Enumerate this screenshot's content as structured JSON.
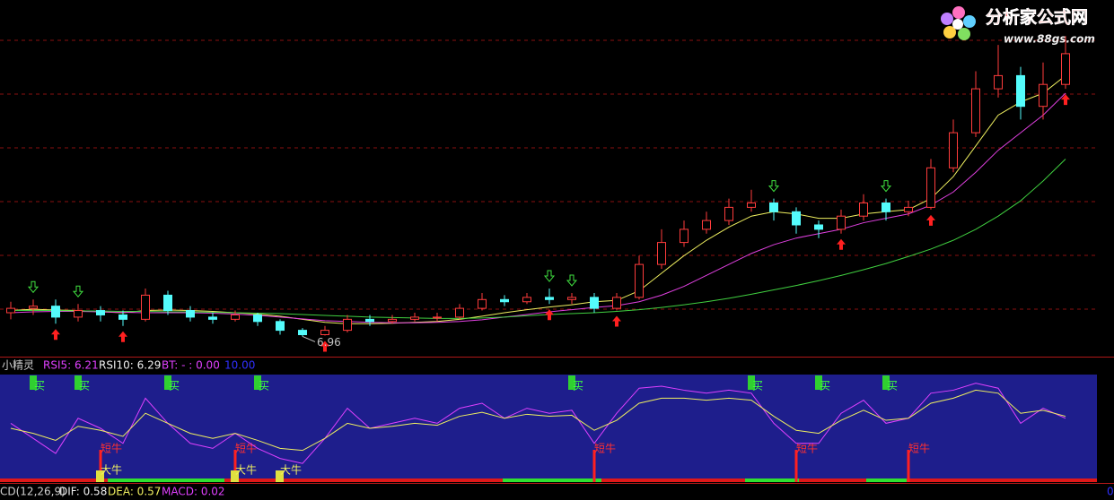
{
  "chart_data": [
    {
      "type": "candlestick",
      "open": [
        7.5,
        7.6,
        7.65,
        7.4,
        7.55,
        7.45,
        7.35,
        7.9,
        7.55,
        7.4,
        7.35,
        7.45,
        7.3,
        7.1,
        7.0,
        7.1,
        7.35,
        7.3,
        7.35,
        7.4,
        7.4,
        7.6,
        7.8,
        7.75,
        7.85,
        7.8,
        7.85,
        7.6,
        7.85,
        8.6,
        9.1,
        9.4,
        9.6,
        9.9,
        10.0,
        9.8,
        9.5,
        9.4,
        9.7,
        10.0,
        9.8,
        9.9,
        10.8,
        11.6,
        12.6,
        12.9,
        12.2,
        12.7
      ],
      "high": [
        7.75,
        7.8,
        7.8,
        7.7,
        7.65,
        7.55,
        8.05,
        8.0,
        7.65,
        7.5,
        7.55,
        7.5,
        7.35,
        7.15,
        7.2,
        7.45,
        7.45,
        7.45,
        7.5,
        7.5,
        7.7,
        7.95,
        7.9,
        7.95,
        8.05,
        7.95,
        7.95,
        7.95,
        8.8,
        9.4,
        9.6,
        9.8,
        10.1,
        10.3,
        10.1,
        9.9,
        9.6,
        9.85,
        10.2,
        10.1,
        10.05,
        11.0,
        11.9,
        13.0,
        13.6,
        13.1,
        13.2,
        13.8
      ],
      "low": [
        7.35,
        7.45,
        7.25,
        7.3,
        7.3,
        7.2,
        7.3,
        7.45,
        7.3,
        7.25,
        7.3,
        7.2,
        7.0,
        6.96,
        6.98,
        7.05,
        7.2,
        7.25,
        7.3,
        7.3,
        7.35,
        7.55,
        7.65,
        7.7,
        7.7,
        7.7,
        7.5,
        7.55,
        7.8,
        8.5,
        9.0,
        9.3,
        9.5,
        9.8,
        9.6,
        9.3,
        9.2,
        9.3,
        9.6,
        9.6,
        9.7,
        9.85,
        10.7,
        11.5,
        12.4,
        11.9,
        11.9,
        12.6
      ],
      "close": [
        7.6,
        7.65,
        7.4,
        7.55,
        7.45,
        7.35,
        7.9,
        7.55,
        7.4,
        7.35,
        7.45,
        7.3,
        7.1,
        7.0,
        7.1,
        7.35,
        7.3,
        7.35,
        7.4,
        7.4,
        7.6,
        7.8,
        7.75,
        7.85,
        7.8,
        7.85,
        7.6,
        7.85,
        8.6,
        9.1,
        9.4,
        9.6,
        9.9,
        10.0,
        9.8,
        9.5,
        9.4,
        9.7,
        10.0,
        9.8,
        9.9,
        10.8,
        11.6,
        12.6,
        12.9,
        12.2,
        12.7,
        13.4
      ],
      "up_color": "#ff3c3c",
      "down_color": "#54fcfc",
      "series": [
        {
          "color": "#f0f060",
          "values": [
            7.55,
            7.58,
            7.56,
            7.55,
            7.52,
            7.5,
            7.55,
            7.56,
            7.55,
            7.53,
            7.5,
            7.47,
            7.42,
            7.35,
            7.28,
            7.25,
            7.25,
            7.26,
            7.28,
            7.3,
            7.35,
            7.42,
            7.5,
            7.57,
            7.63,
            7.68,
            7.75,
            7.78,
            8.0,
            8.4,
            8.8,
            9.15,
            9.45,
            9.7,
            9.8,
            9.75,
            9.65,
            9.65,
            9.75,
            9.8,
            9.85,
            10.1,
            10.6,
            11.3,
            12.0,
            12.3,
            12.5,
            12.9
          ]
        },
        {
          "color": "#e040e0",
          "values": [
            7.5,
            7.52,
            7.53,
            7.53,
            7.52,
            7.51,
            7.5,
            7.5,
            7.5,
            7.49,
            7.47,
            7.44,
            7.4,
            7.36,
            7.32,
            7.3,
            7.28,
            7.27,
            7.27,
            7.28,
            7.3,
            7.34,
            7.4,
            7.46,
            7.52,
            7.57,
            7.62,
            7.66,
            7.75,
            7.9,
            8.1,
            8.35,
            8.6,
            8.85,
            9.05,
            9.2,
            9.3,
            9.4,
            9.55,
            9.65,
            9.75,
            9.95,
            10.25,
            10.7,
            11.2,
            11.6,
            12.0,
            12.5
          ]
        },
        {
          "color": "#40d040",
          "values": [
            7.55,
            7.55,
            7.55,
            7.54,
            7.54,
            7.53,
            7.53,
            7.52,
            7.52,
            7.51,
            7.5,
            7.49,
            7.48,
            7.46,
            7.44,
            7.42,
            7.4,
            7.39,
            7.38,
            7.37,
            7.37,
            7.38,
            7.4,
            7.43,
            7.46,
            7.48,
            7.5,
            7.53,
            7.57,
            7.62,
            7.68,
            7.75,
            7.83,
            7.92,
            8.02,
            8.12,
            8.23,
            8.35,
            8.48,
            8.62,
            8.78,
            8.95,
            9.15,
            9.4,
            9.7,
            10.05,
            10.5,
            11.0
          ]
        }
      ],
      "ylim": [
        6.5,
        14.5
      ],
      "down_arrows": [
        1,
        3,
        24,
        25,
        34,
        39
      ],
      "up_arrows": [
        2,
        5,
        14,
        24,
        27,
        37,
        41,
        47
      ],
      "low_label": {
        "index": 13,
        "value": 6.96
      }
    },
    {
      "type": "line",
      "header": [
        "小精灵",
        "RSI5: 6.21",
        "RSI10: 6.29",
        "BT: - : 0.00",
        "10.00"
      ],
      "series": [
        {
          "color": "#e040ff",
          "values": [
            55,
            40,
            25,
            60,
            50,
            35,
            80,
            55,
            35,
            30,
            45,
            30,
            20,
            15,
            40,
            70,
            50,
            55,
            60,
            55,
            70,
            75,
            60,
            70,
            65,
            68,
            35,
            65,
            90,
            92,
            88,
            85,
            88,
            85,
            55,
            35,
            35,
            65,
            78,
            55,
            60,
            85,
            88,
            95,
            90,
            55,
            70,
            60
          ]
        },
        {
          "color": "#f0f060",
          "values": [
            50,
            45,
            38,
            52,
            48,
            42,
            65,
            55,
            45,
            40,
            45,
            38,
            30,
            28,
            40,
            55,
            50,
            52,
            55,
            53,
            62,
            66,
            60,
            64,
            62,
            63,
            48,
            58,
            75,
            80,
            80,
            78,
            80,
            78,
            62,
            48,
            45,
            58,
            68,
            58,
            60,
            75,
            80,
            88,
            85,
            65,
            68,
            62
          ]
        }
      ],
      "ylim": [
        0,
        100
      ],
      "buy": {
        "label": "买",
        "index": [
          1,
          3,
          7,
          11,
          25,
          33,
          36,
          39
        ]
      },
      "short_bull": {
        "label": "短牛",
        "index": [
          4,
          10,
          26,
          35,
          40
        ]
      },
      "big_bull": {
        "label": "大牛",
        "index": [
          4,
          10,
          12
        ]
      },
      "footer": [
        "CD(12,26,9)",
        "DIF: 0.58",
        "DEA: 0.57",
        "MACD: 0.02"
      ],
      "corner": "0"
    }
  ],
  "watermark": {
    "name": "分析家公式网",
    "url": "www.88gs.com"
  }
}
